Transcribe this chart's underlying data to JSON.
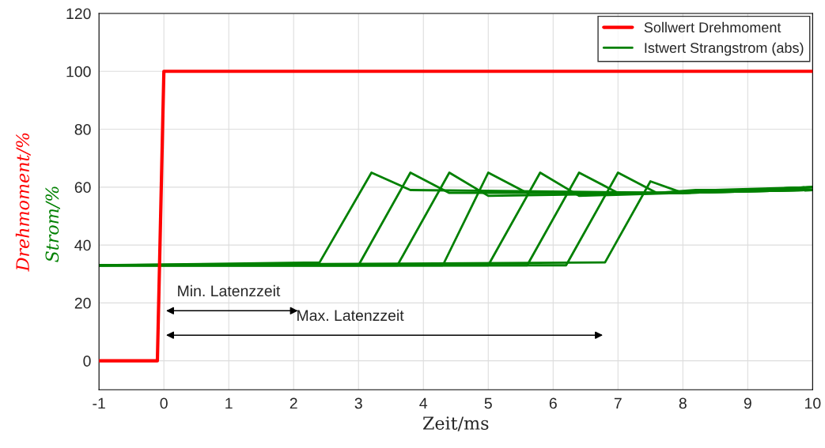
{
  "chart_data": {
    "type": "line",
    "xlabel": "Zeit/ms",
    "ylabel": "Drehmoment/%",
    "y2label": "Strom/%",
    "xlim": [
      -1,
      10
    ],
    "xticks": [
      -1,
      0,
      1,
      2,
      3,
      4,
      5,
      6,
      7,
      8,
      9,
      10
    ],
    "ylim": [
      -10,
      120
    ],
    "yticks": [
      0,
      20,
      40,
      60,
      80,
      100,
      120
    ],
    "grid": true,
    "legend": "top right",
    "series": [
      {
        "name": "Sollwert Drehmoment",
        "color": "#ff0000",
        "x": [
          -1,
          -0.1,
          0,
          10
        ],
        "values": [
          0,
          0,
          100,
          100
        ]
      },
      {
        "name": "Istwert Strangstrom (abs)",
        "color": "#008000",
        "x": [
          -1,
          2.4,
          3.2,
          3.8,
          8,
          10
        ],
        "values": [
          33,
          34,
          65,
          59,
          58,
          59
        ]
      },
      {
        "color": "#008000",
        "x": [
          -1,
          3.0,
          3.8,
          4.4,
          8,
          10
        ],
        "values": [
          33,
          33,
          65,
          58,
          58,
          60
        ]
      },
      {
        "color": "#008000",
        "x": [
          -1,
          3.6,
          4.4,
          5.0,
          8,
          10
        ],
        "values": [
          33,
          33,
          65,
          57,
          58,
          59
        ]
      },
      {
        "color": "#008000",
        "x": [
          -1,
          4.3,
          5.0,
          5.6,
          8,
          10
        ],
        "values": [
          33,
          33,
          65,
          58,
          58,
          60
        ]
      },
      {
        "color": "#008000",
        "x": [
          -1,
          5.0,
          5.8,
          6.4,
          8,
          10
        ],
        "values": [
          33,
          33,
          65,
          57,
          58,
          59
        ]
      },
      {
        "color": "#008000",
        "x": [
          -1,
          5.6,
          6.4,
          7.0,
          8,
          10
        ],
        "values": [
          33,
          33,
          65,
          58,
          58,
          60
        ]
      },
      {
        "color": "#008000",
        "x": [
          -1,
          6.2,
          7.0,
          7.6,
          8.2,
          10
        ],
        "values": [
          33,
          33,
          65,
          58,
          59,
          59
        ]
      },
      {
        "color": "#008000",
        "x": [
          -1,
          6.8,
          7.5,
          8.0,
          8.5,
          10
        ],
        "values": [
          33,
          34,
          62,
          58,
          59,
          60
        ]
      }
    ],
    "annotations": [
      "Min. Latenzzeit",
      "Max. Latenzzeit"
    ]
  }
}
